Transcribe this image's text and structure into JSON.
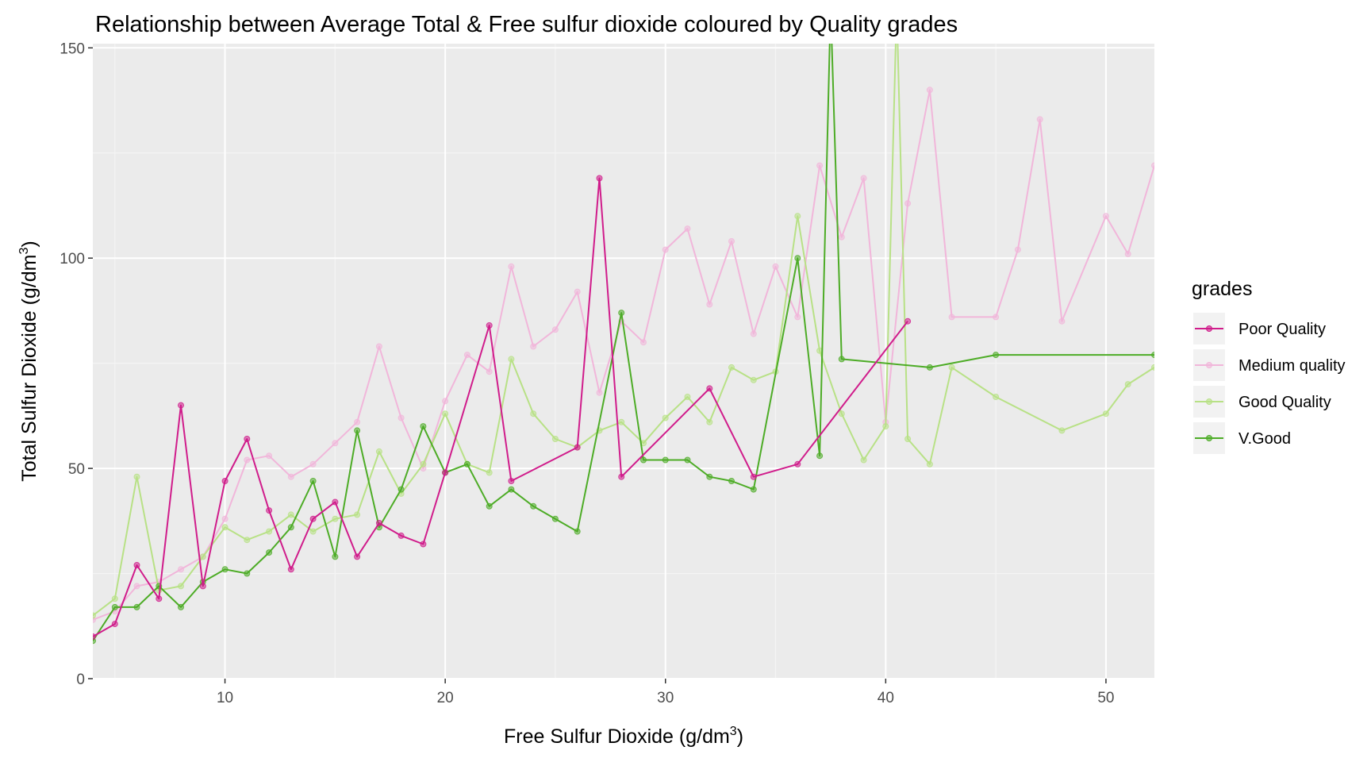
{
  "colors": {
    "panel_bg": "#EBEBEB",
    "grid_major": "#FFFFFF",
    "grid_minor": "#F4F4F4",
    "poor": "#D01C8B",
    "medium": "#F1B6DA",
    "good": "#B8E186",
    "vgood": "#4DAC26"
  },
  "chart_data": {
    "type": "line",
    "title": "Relationship between Average Total & Free sulfur dioxide coloured by Quality grades",
    "xlabel": "Free Sulfur Dioxide (g/dm3)",
    "ylabel": "Total Sulfur Dioxide (g/dm3)",
    "xlabel_main": "Free Sulfur Dioxide (g/dm",
    "xlabel_sup": "3",
    "xlabel_end": ")",
    "ylabel_main": "Total Sulfur Dioxide (g/dm",
    "ylabel_sup": "3",
    "ylabel_end": ")",
    "xlim": [
      4,
      52.2
    ],
    "ylim": [
      0,
      151
    ],
    "xticks": [
      10,
      20,
      30,
      40,
      50
    ],
    "yticks": [
      0,
      50,
      100,
      150
    ],
    "xtick_labels": [
      "10",
      "20",
      "30",
      "40",
      "50"
    ],
    "ytick_labels": [
      "0",
      "50",
      "100",
      "150"
    ],
    "legend": {
      "title": "grades",
      "position": "right",
      "labels": [
        "Poor Quality",
        "Medium quality",
        "Good Quality",
        "V.Good"
      ]
    },
    "series": [
      {
        "name": "Poor Quality",
        "color": "#D01C8B",
        "x": [
          4,
          5,
          6,
          7,
          8,
          9,
          10,
          11,
          12,
          13,
          14,
          15,
          16,
          17,
          18,
          19,
          20,
          22,
          23,
          26,
          27,
          28,
          32,
          34,
          36,
          41
        ],
        "y": [
          10,
          13,
          27,
          19,
          65,
          22,
          47,
          57,
          40,
          26,
          38,
          42,
          29,
          37,
          34,
          32,
          49,
          84,
          47,
          55,
          119,
          48,
          69,
          48,
          51,
          85
        ]
      },
      {
        "name": "Medium quality",
        "color": "#F1B6DA",
        "x": [
          4,
          5,
          6,
          7,
          8,
          9,
          10,
          11,
          12,
          13,
          14,
          15,
          16,
          17,
          18,
          19,
          20,
          21,
          22,
          23,
          24,
          25,
          26,
          27,
          28,
          29,
          30,
          31,
          32,
          33,
          34,
          35,
          36,
          37,
          38,
          39,
          40,
          41,
          42,
          43,
          45,
          46,
          47,
          48,
          50,
          51,
          52.2
        ],
        "y": [
          14,
          16,
          22,
          23,
          26,
          29,
          38,
          52,
          53,
          48,
          51,
          56,
          61,
          79,
          62,
          50,
          66,
          77,
          73,
          98,
          79,
          83,
          92,
          68,
          85,
          80,
          102,
          107,
          89,
          104,
          82,
          98,
          86,
          122,
          105,
          119,
          61,
          113,
          140,
          86,
          86,
          102,
          133,
          85,
          110,
          101,
          122
        ]
      },
      {
        "name": "Good Quality",
        "color": "#B8E186",
        "x": [
          4,
          5,
          6,
          7,
          8,
          9,
          10,
          11,
          12,
          13,
          14,
          15,
          16,
          17,
          18,
          19,
          20,
          21,
          22,
          23,
          24,
          25,
          26,
          27,
          28,
          29,
          30,
          31,
          32,
          33,
          34,
          35,
          36,
          37,
          38,
          39,
          40,
          40.5,
          41,
          42,
          43,
          45,
          48,
          50,
          51,
          52.2
        ],
        "y": [
          15,
          19,
          48,
          21,
          22,
          29,
          36,
          33,
          35,
          39,
          35,
          38,
          39,
          54,
          44,
          51,
          63,
          51,
          49,
          76,
          63,
          57,
          55,
          59,
          61,
          56,
          62,
          67,
          61,
          74,
          71,
          73,
          110,
          78,
          63,
          52,
          60,
          160,
          57,
          51,
          74,
          67,
          59,
          63,
          70,
          74
        ]
      },
      {
        "name": "V.Good",
        "color": "#4DAC26",
        "x": [
          4,
          5,
          6,
          7,
          8,
          9,
          10,
          11,
          12,
          13,
          14,
          15,
          16,
          17,
          18,
          19,
          20,
          21,
          22,
          23,
          24,
          25,
          26,
          28,
          29,
          30,
          31,
          32,
          33,
          34,
          36,
          37,
          37.5,
          38,
          42,
          45,
          52.2
        ],
        "y": [
          9,
          17,
          17,
          22,
          17,
          23,
          26,
          25,
          30,
          36,
          47,
          29,
          59,
          36,
          45,
          60,
          49,
          51,
          41,
          45,
          41,
          38,
          35,
          87,
          52,
          52,
          52,
          48,
          47,
          45,
          100,
          53,
          160,
          76,
          74,
          77,
          77
        ]
      }
    ]
  }
}
